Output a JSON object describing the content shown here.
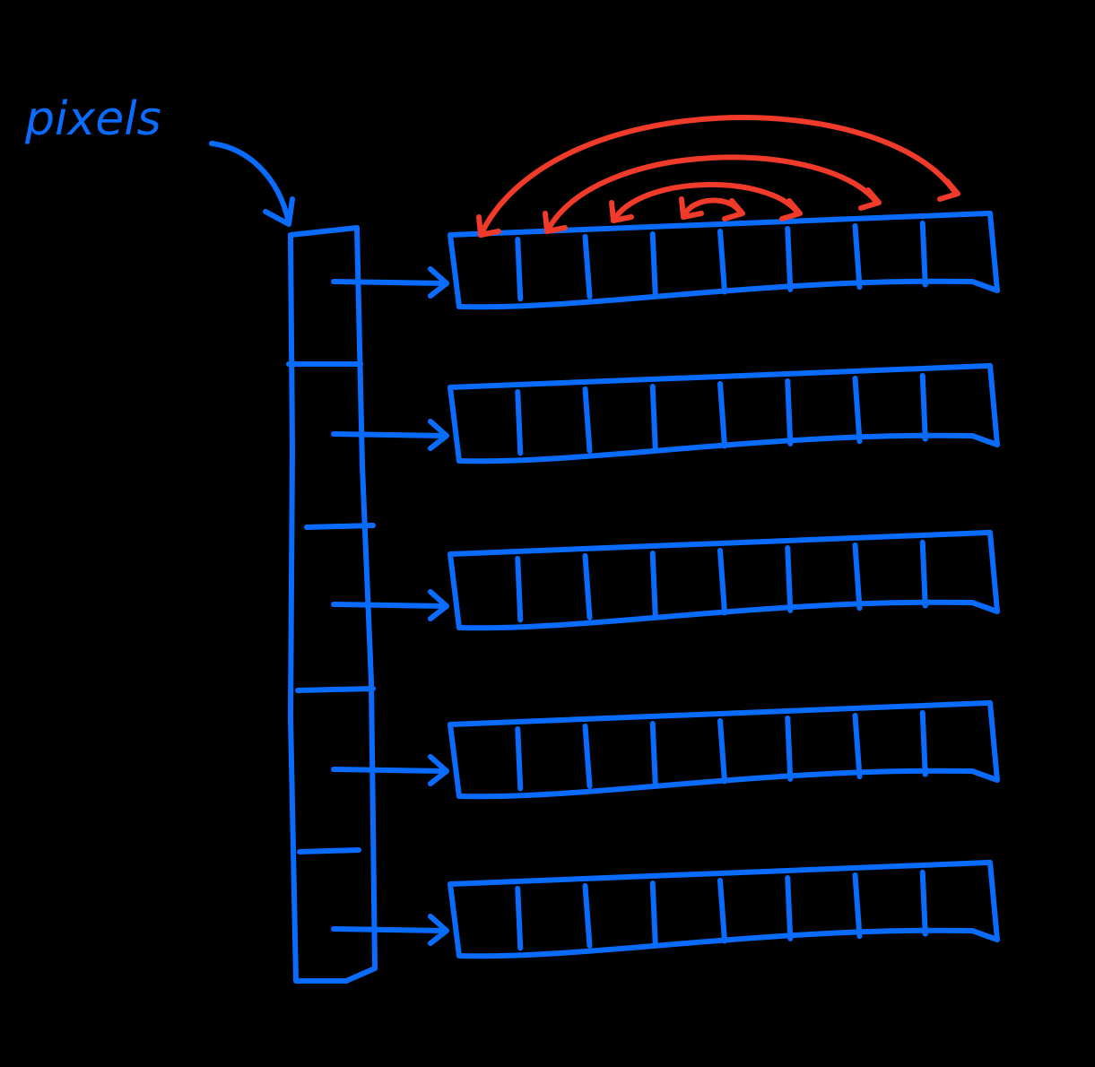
{
  "diagram": {
    "label": "pixels",
    "row_count": 5,
    "cells_per_row": 8,
    "colors": {
      "background": "#000000",
      "ink_blue": "#0a6cff",
      "ink_red": "#f03a2a"
    },
    "icons": [
      "pointer-arrow-icon",
      "swap-arrow-icon"
    ]
  }
}
